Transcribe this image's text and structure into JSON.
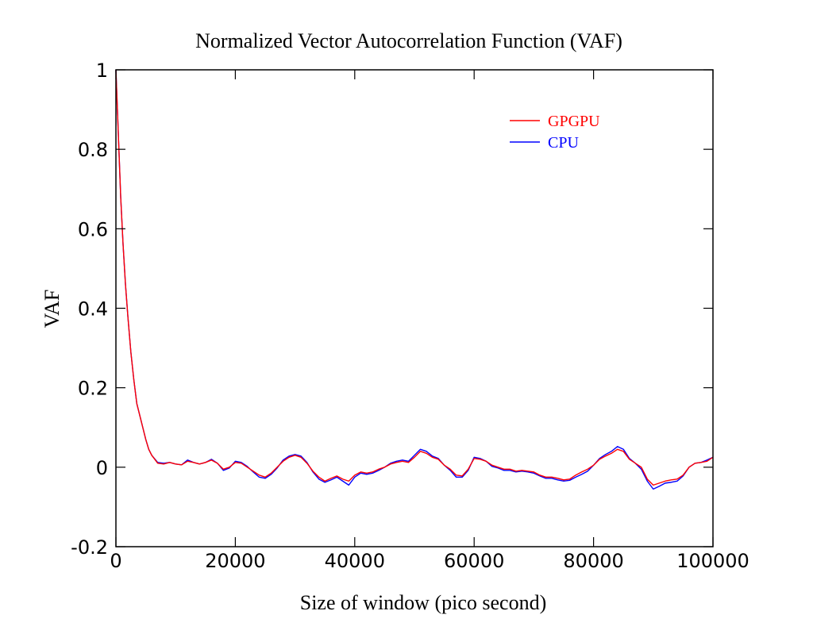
{
  "chart_data": {
    "type": "line",
    "title": "Normalized Vector Autocorrelation Function (VAF)",
    "xlabel": "Size of window (pico second)",
    "ylabel": "VAF",
    "xlim": [
      0,
      100000
    ],
    "ylim": [
      -0.2,
      1
    ],
    "x_ticks": [
      0,
      20000,
      40000,
      60000,
      80000,
      100000
    ],
    "x_tick_labels": [
      "0",
      "20000",
      "40000",
      "60000",
      "80000",
      "100000"
    ],
    "y_ticks": [
      -0.2,
      0,
      0.2,
      0.4,
      0.6,
      0.8,
      1
    ],
    "y_tick_labels": [
      "-0.2",
      "0",
      "0.2",
      "0.4",
      "0.6",
      "0.8",
      "1"
    ],
    "grid": false,
    "legend_position": "top-right",
    "x": [
      0,
      200,
      500,
      800,
      1200,
      1600,
      2000,
      2500,
      3000,
      3500,
      4000,
      4500,
      5000,
      5500,
      6000,
      7000,
      8000,
      9000,
      10000,
      11000,
      12000,
      13000,
      14000,
      15000,
      16000,
      17000,
      18000,
      19000,
      20000,
      21000,
      22000,
      23000,
      24000,
      25000,
      26000,
      27000,
      28000,
      29000,
      30000,
      31000,
      32000,
      33000,
      34000,
      35000,
      36000,
      37000,
      38000,
      39000,
      40000,
      41000,
      42000,
      43000,
      44000,
      45000,
      46000,
      47000,
      48000,
      49000,
      50000,
      51000,
      52000,
      53000,
      54000,
      55000,
      56000,
      57000,
      58000,
      59000,
      60000,
      61000,
      62000,
      63000,
      64000,
      65000,
      66000,
      67000,
      68000,
      69000,
      70000,
      71000,
      72000,
      73000,
      74000,
      75000,
      76000,
      77000,
      78000,
      79000,
      80000,
      81000,
      82000,
      83000,
      84000,
      85000,
      86000,
      87000,
      88000,
      89000,
      90000,
      91000,
      92000,
      93000,
      94000,
      95000,
      96000,
      97000,
      98000,
      99000,
      100000
    ],
    "series": [
      {
        "name": "GPGPU",
        "color": "#ff0000",
        "values": [
          1.0,
          0.92,
          0.8,
          0.68,
          0.56,
          0.46,
          0.38,
          0.29,
          0.22,
          0.16,
          0.13,
          0.1,
          0.07,
          0.045,
          0.03,
          0.01,
          0.008,
          0.012,
          0.008,
          0.006,
          0.015,
          0.012,
          0.008,
          0.012,
          0.018,
          0.01,
          -0.005,
          0.0,
          0.012,
          0.01,
          0.0,
          -0.01,
          -0.02,
          -0.025,
          -0.015,
          0.0,
          0.015,
          0.025,
          0.03,
          0.025,
          0.01,
          -0.01,
          -0.025,
          -0.035,
          -0.028,
          -0.022,
          -0.03,
          -0.035,
          -0.02,
          -0.012,
          -0.015,
          -0.012,
          -0.005,
          0.0,
          0.008,
          0.012,
          0.015,
          0.012,
          0.025,
          0.04,
          0.035,
          0.025,
          0.02,
          0.005,
          -0.005,
          -0.02,
          -0.022,
          -0.005,
          0.022,
          0.02,
          0.015,
          0.005,
          0.0,
          -0.005,
          -0.005,
          -0.01,
          -0.008,
          -0.01,
          -0.012,
          -0.02,
          -0.025,
          -0.025,
          -0.028,
          -0.032,
          -0.03,
          -0.02,
          -0.012,
          -0.005,
          0.005,
          0.02,
          0.028,
          0.035,
          0.045,
          0.04,
          0.02,
          0.01,
          0.0,
          -0.03,
          -0.045,
          -0.04,
          -0.035,
          -0.032,
          -0.03,
          -0.02,
          0.0,
          0.01,
          0.012,
          0.015,
          0.025
        ]
      },
      {
        "name": "CPU",
        "color": "#0000ff",
        "values": [
          1.0,
          0.92,
          0.8,
          0.68,
          0.56,
          0.46,
          0.38,
          0.29,
          0.22,
          0.16,
          0.13,
          0.1,
          0.07,
          0.045,
          0.03,
          0.012,
          0.01,
          0.012,
          0.008,
          0.006,
          0.018,
          0.012,
          0.008,
          0.012,
          0.02,
          0.01,
          -0.008,
          -0.002,
          0.015,
          0.012,
          0.002,
          -0.012,
          -0.025,
          -0.028,
          -0.018,
          -0.002,
          0.018,
          0.028,
          0.032,
          0.028,
          0.012,
          -0.012,
          -0.03,
          -0.038,
          -0.032,
          -0.025,
          -0.035,
          -0.045,
          -0.025,
          -0.015,
          -0.018,
          -0.015,
          -0.008,
          0.0,
          0.01,
          0.015,
          0.018,
          0.015,
          0.03,
          0.045,
          0.04,
          0.028,
          0.022,
          0.005,
          -0.008,
          -0.025,
          -0.025,
          -0.008,
          0.025,
          0.022,
          0.015,
          0.002,
          -0.002,
          -0.008,
          -0.008,
          -0.012,
          -0.01,
          -0.012,
          -0.015,
          -0.022,
          -0.028,
          -0.028,
          -0.032,
          -0.035,
          -0.033,
          -0.025,
          -0.018,
          -0.01,
          0.005,
          0.022,
          0.032,
          0.04,
          0.052,
          0.045,
          0.022,
          0.01,
          -0.005,
          -0.035,
          -0.055,
          -0.048,
          -0.04,
          -0.038,
          -0.035,
          -0.022,
          0.0,
          0.01,
          0.012,
          0.018,
          0.025
        ]
      }
    ]
  }
}
